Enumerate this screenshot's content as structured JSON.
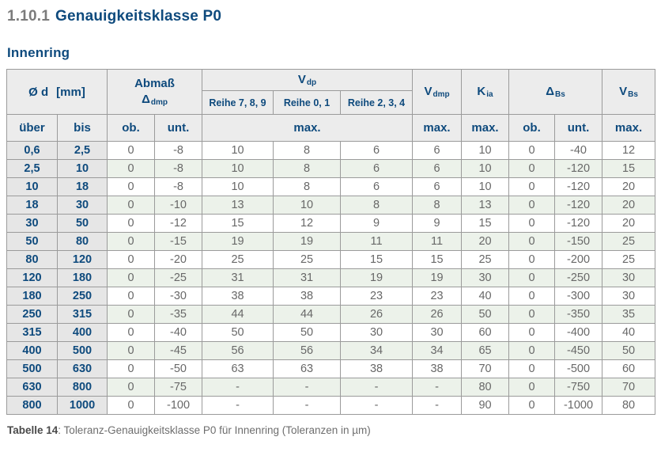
{
  "page": {
    "section_number": "1.10.1",
    "section_title": "Genauigkeitsklasse P0",
    "subtitle": "Innenring",
    "caption_label": "Tabelle 14",
    "caption_text": ": Toleranz-Genauigkeitsklasse P0 für Innenring (Toleranzen in µm)"
  },
  "colors": {
    "heading_blue": "#0e4a7d",
    "heading_gray": "#7b7b7b",
    "header_bg": "#ececec",
    "dim_bg": "#e6e6e6",
    "row_alt_bg": "#ecf2ea",
    "border": "#9b9b9b",
    "value_text": "#686868",
    "caption_text": "#6e6e6e"
  },
  "table": {
    "header": {
      "od_main": "Ø d",
      "od_unit": "[mm]",
      "abmass_title": "Abmaß",
      "abmass_symbol": "Δ",
      "abmass_symbol_sub": "dmp",
      "vdp": "V",
      "vdp_sub": "dp",
      "reihe_789": "Reihe 7, 8, 9",
      "reihe_01": "Reihe 0, 1",
      "reihe_234": "Reihe 2, 3, 4",
      "vdmp": "V",
      "vdmp_sub": "dmp",
      "kia": "K",
      "kia_sub": "ia",
      "dbs": "Δ",
      "dbs_sub": "Bs",
      "vbs": "V",
      "vbs_sub": "Bs",
      "row2": {
        "ueber": "über",
        "bis": "bis",
        "ob_dmp": "ob.",
        "unt_dmp": "unt.",
        "max_vdp": "max.",
        "max_vdmp": "max.",
        "max_kia": "max.",
        "ob_bs": "ob.",
        "unt_bs": "unt.",
        "max_vbs": "max."
      }
    },
    "rows": [
      [
        "0,6",
        "2,5",
        "0",
        "-8",
        "10",
        "8",
        "6",
        "6",
        "10",
        "0",
        "-40",
        "12"
      ],
      [
        "2,5",
        "10",
        "0",
        "-8",
        "10",
        "8",
        "6",
        "6",
        "10",
        "0",
        "-120",
        "15"
      ],
      [
        "10",
        "18",
        "0",
        "-8",
        "10",
        "8",
        "6",
        "6",
        "10",
        "0",
        "-120",
        "20"
      ],
      [
        "18",
        "30",
        "0",
        "-10",
        "13",
        "10",
        "8",
        "8",
        "13",
        "0",
        "-120",
        "20"
      ],
      [
        "30",
        "50",
        "0",
        "-12",
        "15",
        "12",
        "9",
        "9",
        "15",
        "0",
        "-120",
        "20"
      ],
      [
        "50",
        "80",
        "0",
        "-15",
        "19",
        "19",
        "11",
        "11",
        "20",
        "0",
        "-150",
        "25"
      ],
      [
        "80",
        "120",
        "0",
        "-20",
        "25",
        "25",
        "15",
        "15",
        "25",
        "0",
        "-200",
        "25"
      ],
      [
        "120",
        "180",
        "0",
        "-25",
        "31",
        "31",
        "19",
        "19",
        "30",
        "0",
        "-250",
        "30"
      ],
      [
        "180",
        "250",
        "0",
        "-30",
        "38",
        "38",
        "23",
        "23",
        "40",
        "0",
        "-300",
        "30"
      ],
      [
        "250",
        "315",
        "0",
        "-35",
        "44",
        "44",
        "26",
        "26",
        "50",
        "0",
        "-350",
        "35"
      ],
      [
        "315",
        "400",
        "0",
        "-40",
        "50",
        "50",
        "30",
        "30",
        "60",
        "0",
        "-400",
        "40"
      ],
      [
        "400",
        "500",
        "0",
        "-45",
        "56",
        "56",
        "34",
        "34",
        "65",
        "0",
        "-450",
        "50"
      ],
      [
        "500",
        "630",
        "0",
        "-50",
        "63",
        "63",
        "38",
        "38",
        "70",
        "0",
        "-500",
        "60"
      ],
      [
        "630",
        "800",
        "0",
        "-75",
        "-",
        "-",
        "-",
        "-",
        "80",
        "0",
        "-750",
        "70"
      ],
      [
        "800",
        "1000",
        "0",
        "-100",
        "-",
        "-",
        "-",
        "-",
        "90",
        "0",
        "-1000",
        "80"
      ]
    ]
  }
}
